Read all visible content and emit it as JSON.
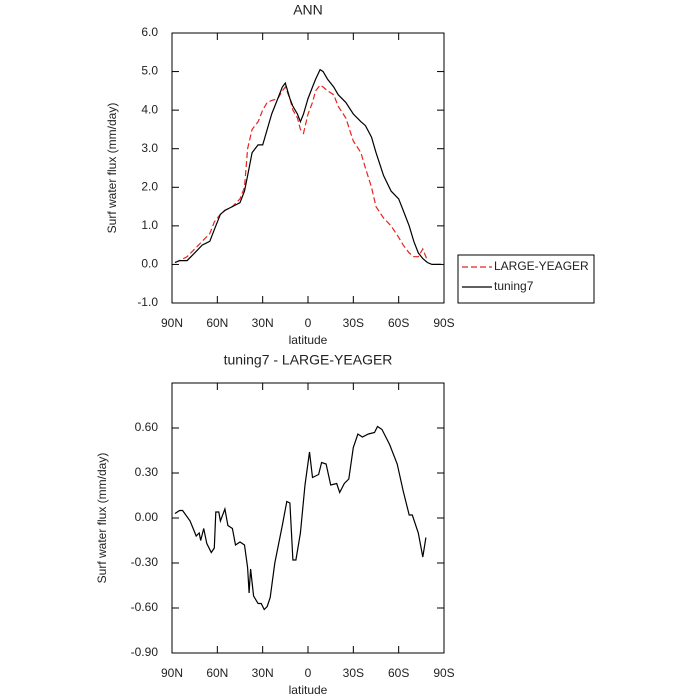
{
  "chart_data": [
    {
      "type": "line",
      "title": "ANN",
      "xlabel": "latitude",
      "ylabel": "Surf water flux (mm/day)",
      "x": [
        88,
        85,
        80,
        75,
        70,
        65,
        62,
        58,
        55,
        50,
        45,
        42,
        40,
        37,
        33,
        30,
        27,
        24,
        20,
        17,
        15,
        12,
        10,
        7,
        5,
        3,
        0,
        -3,
        -5,
        -8,
        -10,
        -13,
        -17,
        -20,
        -25,
        -30,
        -35,
        -38,
        -42,
        -45,
        -50,
        -55,
        -60,
        -63,
        -67,
        -70,
        -73,
        -76,
        -79,
        -82,
        -85,
        -88
      ],
      "series": [
        {
          "name": "LARGE-YEAGER",
          "color": "#e8231f",
          "linestyle": "dashed",
          "values": [
            0.05,
            0.1,
            0.2,
            0.4,
            0.6,
            0.8,
            1.1,
            1.3,
            1.4,
            1.5,
            1.7,
            2.0,
            3.0,
            3.5,
            3.7,
            4.0,
            4.2,
            4.25,
            4.3,
            4.5,
            4.6,
            4.3,
            4.0,
            3.8,
            3.5,
            3.4,
            3.9,
            4.2,
            4.5,
            4.65,
            4.6,
            4.5,
            4.4,
            4.1,
            3.8,
            3.2,
            2.9,
            2.5,
            2.0,
            1.5,
            1.2,
            1.0,
            0.7,
            0.5,
            0.3,
            0.2,
            0.2,
            0.4,
            0.1,
            null,
            null,
            null
          ]
        },
        {
          "name": "tuning7",
          "color": "#000000",
          "linestyle": "solid",
          "values": [
            0.05,
            0.1,
            0.1,
            0.3,
            0.5,
            0.6,
            0.9,
            1.3,
            1.4,
            1.5,
            1.6,
            1.9,
            2.3,
            2.9,
            3.1,
            3.1,
            3.5,
            3.9,
            4.3,
            4.6,
            4.7,
            4.3,
            4.1,
            3.9,
            3.7,
            3.9,
            4.3,
            4.6,
            4.8,
            5.05,
            5.0,
            4.8,
            4.6,
            4.4,
            4.2,
            3.9,
            3.7,
            3.6,
            3.3,
            2.9,
            2.3,
            1.9,
            1.7,
            1.4,
            1.0,
            0.6,
            0.3,
            0.15,
            0.05,
            0.0,
            0.0,
            0.0
          ]
        }
      ],
      "xlim": [
        90,
        -90
      ],
      "xticks": [
        {
          "value": 90,
          "label": "90N"
        },
        {
          "value": 60,
          "label": "60N"
        },
        {
          "value": 30,
          "label": "30N"
        },
        0,
        {
          "value": -30,
          "label": "30S"
        },
        {
          "value": -60,
          "label": "60S"
        },
        {
          "value": -90,
          "label": "90S"
        }
      ],
      "ylim": [
        -1,
        6
      ],
      "yticks": [
        {
          "value": -1,
          "label": "-1.0"
        },
        {
          "value": 0,
          "label": "0.0"
        },
        {
          "value": 1,
          "label": "1.0"
        },
        {
          "value": 2,
          "label": "2.0"
        },
        {
          "value": 3,
          "label": "3.0"
        },
        {
          "value": 4,
          "label": "4.0"
        },
        {
          "value": 5,
          "label": "5.0"
        },
        {
          "value": 6,
          "label": "6.0"
        }
      ],
      "legend": "right"
    },
    {
      "type": "line",
      "title": "tuning7 - LARGE-YEAGER",
      "xlabel": "latitude",
      "ylabel": "Surf water flux (mm/day)",
      "x": [
        88,
        85,
        83,
        78,
        74,
        72,
        71,
        69,
        67,
        64,
        62,
        61,
        59,
        58,
        55,
        53,
        50,
        48,
        45,
        42,
        40,
        39,
        38,
        36,
        33,
        31,
        29,
        27,
        25,
        22,
        19,
        17,
        14,
        12,
        10,
        8,
        5,
        2,
        -1,
        -3,
        -7,
        -9,
        -12,
        -15,
        -19,
        -21,
        -24,
        -27,
        -30,
        -33,
        -36,
        -40,
        -44,
        -46,
        -49,
        -54,
        -59,
        -63,
        -67,
        -69,
        -73,
        -76,
        -78
      ],
      "series": [
        {
          "name": "tuning7 - LARGE-YEAGER",
          "color": "#000000",
          "linestyle": "solid",
          "values": [
            0.03,
            0.05,
            0.05,
            -0.02,
            -0.12,
            -0.1,
            -0.15,
            -0.07,
            -0.17,
            -0.23,
            -0.2,
            0.04,
            0.04,
            -0.02,
            0.06,
            -0.05,
            -0.07,
            -0.18,
            -0.16,
            -0.18,
            -0.33,
            -0.5,
            -0.34,
            -0.52,
            -0.57,
            -0.57,
            -0.61,
            -0.59,
            -0.53,
            -0.3,
            -0.15,
            -0.05,
            0.11,
            0.1,
            -0.28,
            -0.28,
            -0.1,
            0.22,
            0.44,
            0.27,
            0.29,
            0.37,
            0.36,
            0.22,
            0.23,
            0.17,
            0.23,
            0.26,
            0.47,
            0.56,
            0.54,
            0.56,
            0.57,
            0.61,
            0.59,
            0.49,
            0.36,
            0.18,
            0.02,
            0.02,
            -0.1,
            -0.26,
            -0.13
          ]
        }
      ],
      "xlim": [
        90,
        -90
      ],
      "xticks": [
        {
          "value": 90,
          "label": "90N"
        },
        {
          "value": 60,
          "label": "60N"
        },
        {
          "value": 30,
          "label": "30N"
        },
        0,
        {
          "value": -30,
          "label": "30S"
        },
        {
          "value": -60,
          "label": "60S"
        },
        {
          "value": -90,
          "label": "90S"
        }
      ],
      "ylim": [
        -0.9,
        0.9
      ],
      "yticks": [
        {
          "value": -0.9,
          "label": "-0.90"
        },
        {
          "value": -0.6,
          "label": "-0.60"
        },
        {
          "value": -0.3,
          "label": "-0.30"
        },
        {
          "value": 0,
          "label": "0.00"
        },
        {
          "value": 0.3,
          "label": "0.30"
        },
        {
          "value": 0.6,
          "label": "0.60"
        }
      ]
    }
  ]
}
